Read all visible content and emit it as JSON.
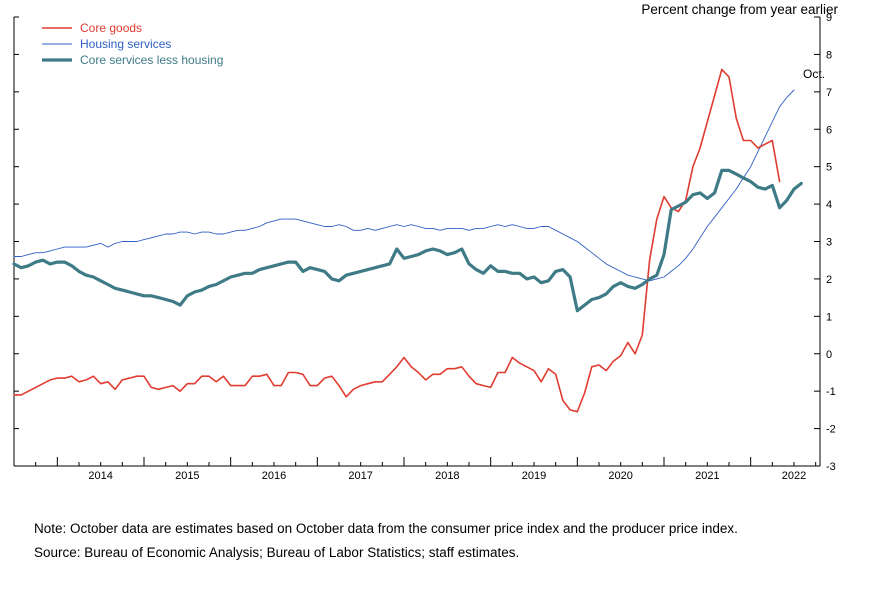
{
  "chart_data": {
    "type": "line",
    "units_label": "Percent change from year earlier",
    "annotation": "Oct.",
    "x_tick_labels": [
      "2014",
      "2015",
      "2016",
      "2017",
      "2018",
      "2019",
      "2020",
      "2021",
      "2022"
    ],
    "x_range": [
      2013.5,
      2022.8
    ],
    "y_range": [
      -3,
      9
    ],
    "y_ticks": [
      "-3",
      "-2",
      "-1",
      "0",
      "1",
      "2",
      "3",
      "4",
      "5",
      "6",
      "7",
      "8",
      "9"
    ],
    "legend_position": "top-left",
    "series": [
      {
        "name": "Core goods",
        "color": "#e03c31",
        "width": 1.6,
        "start": "2013-07",
        "values": [
          -1.1,
          -1.1,
          -1.0,
          -0.9,
          -0.8,
          -0.7,
          -0.65,
          -0.65,
          -0.6,
          -0.75,
          -0.7,
          -0.6,
          -0.8,
          -0.75,
          -0.95,
          -0.7,
          -0.65,
          -0.6,
          -0.6,
          -0.9,
          -0.95,
          -0.9,
          -0.85,
          -1.0,
          -0.8,
          -0.8,
          -0.6,
          -0.6,
          -0.75,
          -0.6,
          -0.85,
          -0.85,
          -0.85,
          -0.6,
          -0.6,
          -0.55,
          -0.85,
          -0.85,
          -0.5,
          -0.5,
          -0.55,
          -0.85,
          -0.85,
          -0.65,
          -0.6,
          -0.85,
          -1.15,
          -0.95,
          -0.85,
          -0.8,
          -0.75,
          -0.75,
          -0.55,
          -0.35,
          -0.1,
          -0.35,
          -0.5,
          -0.7,
          -0.55,
          -0.55,
          -0.4,
          -0.4,
          -0.35,
          -0.6,
          -0.8,
          -0.85,
          -0.9,
          -0.5,
          -0.5,
          -0.1,
          -0.25,
          -0.35,
          -0.45,
          -0.75,
          -0.4,
          -0.55,
          -1.25,
          -1.5,
          -1.55,
          -1.05,
          -0.35,
          -0.3,
          -0.45,
          -0.2,
          -0.05,
          0.3,
          0.0,
          0.5,
          2.5,
          3.6,
          4.2,
          3.9,
          3.8,
          4.1,
          5.0,
          5.5,
          6.2,
          6.9,
          7.6,
          7.4,
          6.3,
          5.7,
          5.7,
          5.5,
          5.6,
          5.7,
          4.6
        ]
      },
      {
        "name": "Housing services",
        "color": "#2e5fc4",
        "width": 0.9,
        "start": "2013-07",
        "values": [
          2.6,
          2.6,
          2.65,
          2.7,
          2.7,
          2.75,
          2.8,
          2.85,
          2.85,
          2.85,
          2.85,
          2.9,
          2.95,
          2.85,
          2.95,
          3.0,
          3.0,
          3.0,
          3.05,
          3.1,
          3.15,
          3.2,
          3.2,
          3.25,
          3.25,
          3.2,
          3.25,
          3.25,
          3.2,
          3.2,
          3.25,
          3.3,
          3.3,
          3.35,
          3.4,
          3.5,
          3.55,
          3.6,
          3.6,
          3.6,
          3.55,
          3.5,
          3.45,
          3.4,
          3.4,
          3.45,
          3.4,
          3.3,
          3.3,
          3.35,
          3.3,
          3.35,
          3.4,
          3.45,
          3.4,
          3.45,
          3.4,
          3.35,
          3.35,
          3.3,
          3.35,
          3.35,
          3.35,
          3.3,
          3.35,
          3.35,
          3.4,
          3.45,
          3.4,
          3.45,
          3.4,
          3.35,
          3.35,
          3.4,
          3.4,
          3.3,
          3.2,
          3.1,
          3.0,
          2.85,
          2.7,
          2.55,
          2.4,
          2.3,
          2.2,
          2.1,
          2.05,
          2.0,
          1.95,
          2.0,
          2.05,
          2.2,
          2.35,
          2.55,
          2.8,
          3.1,
          3.4,
          3.65,
          3.9,
          4.15,
          4.4,
          4.7,
          5.0,
          5.4,
          5.8,
          6.2,
          6.6,
          6.85,
          7.05
        ]
      },
      {
        "name": "Core services less housing",
        "color": "#3e7b86",
        "width": 3.2,
        "start": "2013-07",
        "values": [
          2.4,
          2.3,
          2.35,
          2.45,
          2.5,
          2.4,
          2.45,
          2.45,
          2.35,
          2.2,
          2.1,
          2.05,
          1.95,
          1.85,
          1.75,
          1.7,
          1.65,
          1.6,
          1.55,
          1.55,
          1.5,
          1.45,
          1.4,
          1.3,
          1.55,
          1.65,
          1.7,
          1.8,
          1.85,
          1.95,
          2.05,
          2.1,
          2.15,
          2.15,
          2.25,
          2.3,
          2.35,
          2.4,
          2.45,
          2.45,
          2.2,
          2.3,
          2.25,
          2.2,
          2.0,
          1.95,
          2.1,
          2.15,
          2.2,
          2.25,
          2.3,
          2.35,
          2.4,
          2.8,
          2.55,
          2.6,
          2.65,
          2.75,
          2.8,
          2.75,
          2.65,
          2.7,
          2.8,
          2.4,
          2.25,
          2.15,
          2.35,
          2.2,
          2.2,
          2.15,
          2.15,
          2.0,
          2.05,
          1.9,
          1.95,
          2.2,
          2.25,
          2.05,
          1.15,
          1.3,
          1.45,
          1.5,
          1.6,
          1.8,
          1.9,
          1.8,
          1.75,
          1.85,
          2.0,
          2.1,
          2.65,
          3.85,
          3.95,
          4.05,
          4.25,
          4.3,
          4.15,
          4.3,
          4.9,
          4.9,
          4.8,
          4.7,
          4.6,
          4.45,
          4.4,
          4.5,
          3.9,
          4.1,
          4.4,
          4.55
        ]
      }
    ]
  },
  "notes": {
    "note": "Note: October data are estimates based on October data from the consumer price index and the producer price index.",
    "source": "Source: Bureau of Economic Analysis; Bureau of Labor Statistics; staff estimates."
  }
}
